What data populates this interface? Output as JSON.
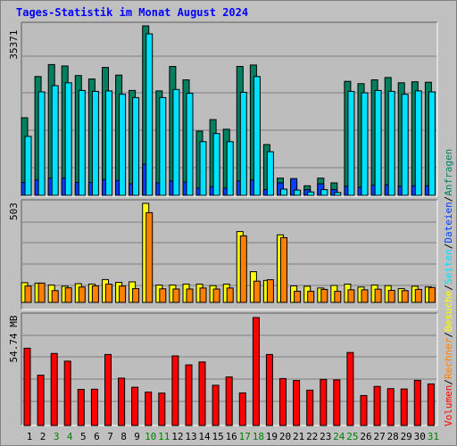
{
  "title": "Tages-Statistik im Monat August 2024",
  "chart_data": {
    "type": "bar",
    "categories": [
      "1",
      "2",
      "3",
      "4",
      "5",
      "6",
      "7",
      "8",
      "9",
      "10",
      "11",
      "12",
      "13",
      "14",
      "15",
      "16",
      "17",
      "18",
      "19",
      "20",
      "21",
      "22",
      "23",
      "24",
      "25",
      "26",
      "27",
      "28",
      "29",
      "30",
      "31"
    ],
    "weekend_days": [
      "3",
      "4",
      "10",
      "11",
      "17",
      "18",
      "24",
      "25",
      "31"
    ],
    "panels": [
      {
        "name": "requests",
        "max_label": "35371",
        "max_value": 35371,
        "series": [
          {
            "name": "Anfragen",
            "color": "#008060",
            "values": [
              16200,
              24800,
              27300,
              27000,
              25000,
              24300,
              26700,
              25100,
              21900,
              35371,
              21800,
              26900,
              24100,
              13400,
              15800,
              13800,
              26900,
              27200,
              10600,
              3600,
              2900,
              2000,
              3600,
              2600,
              23800,
              23300,
              24100,
              24600,
              23500,
              23700,
              23600
            ]
          },
          {
            "name": "Dateien",
            "color": "#0040ff",
            "values": [
              2700,
              3200,
              3600,
              3600,
              2700,
              2700,
              3300,
              3100,
              2400,
              6500,
              2600,
              3000,
              2800,
              1500,
              1800,
              1500,
              3000,
              3200,
              1200,
              2600,
              3500,
              1200,
              2400,
              1200,
              1900,
              1700,
              2100,
              2200,
              1900,
              2000,
              2000
            ]
          },
          {
            "name": "Seiten",
            "color": "#00e0ff",
            "values": [
              12300,
              21600,
              22900,
              23500,
              21900,
              21700,
              21800,
              21100,
              20400,
              33700,
              20400,
              22100,
              21300,
              11200,
              12900,
              11200,
              21500,
              24800,
              9100,
              1300,
              1100,
              700,
              1200,
              600,
              21700,
              21400,
              21900,
              21700,
              21100,
              21800,
              21600
            ]
          }
        ]
      },
      {
        "name": "visits",
        "max_label": "503",
        "max_value": 503,
        "series": [
          {
            "name": "Besuche",
            "color": "#ffff00",
            "values": [
              100,
              98,
              88,
              82,
              95,
              93,
              116,
              102,
              104,
              503,
              88,
              88,
              93,
              93,
              85,
              93,
              360,
              156,
              112,
              343,
              84,
              82,
              73,
              86,
              93,
              78,
              88,
              85,
              70,
              82,
              78
            ]
          },
          {
            "name": "Rechner",
            "color": "#ff8000",
            "values": [
              83,
              98,
              60,
              74,
              78,
              84,
              93,
              83,
              70,
              456,
              69,
              68,
              68,
              73,
              68,
              73,
              338,
              108,
              115,
              329,
              56,
              56,
              66,
              56,
              64,
              64,
              67,
              61,
              60,
              66,
              75
            ]
          }
        ]
      },
      {
        "name": "volume",
        "max_label": "54.74 MB",
        "max_value": 54.74,
        "series": [
          {
            "name": "Volumen",
            "color": "#ff0000",
            "values": [
              39.2,
              25.5,
              36.5,
              32.6,
              18.3,
              18.4,
              36.0,
              24.0,
              19.4,
              16.9,
              16.4,
              35.3,
              30.7,
              32.2,
              20.4,
              24.6,
              16.5,
              54.74,
              36.0,
              23.8,
              22.8,
              17.9,
              23.4,
              23.1,
              37.0,
              15.2,
              19.8,
              18.7,
              18.5,
              22.9,
              21.1
            ]
          }
        ]
      }
    ],
    "legend": {
      "position": "right",
      "separator": "/",
      "items": [
        {
          "label": "Volumen",
          "color": "#ff0000"
        },
        {
          "label": "Rechner",
          "color": "#ff8000"
        },
        {
          "label": "Besuche",
          "color": "#ffff00"
        },
        {
          "label": "Seiten",
          "color": "#00e0ff"
        },
        {
          "label": "Dateien",
          "color": "#0040ff"
        },
        {
          "label": "Anfragen",
          "color": "#008060"
        }
      ]
    },
    "day_label_colors": {
      "weekday": "#000000",
      "weekend": "#008000"
    }
  }
}
